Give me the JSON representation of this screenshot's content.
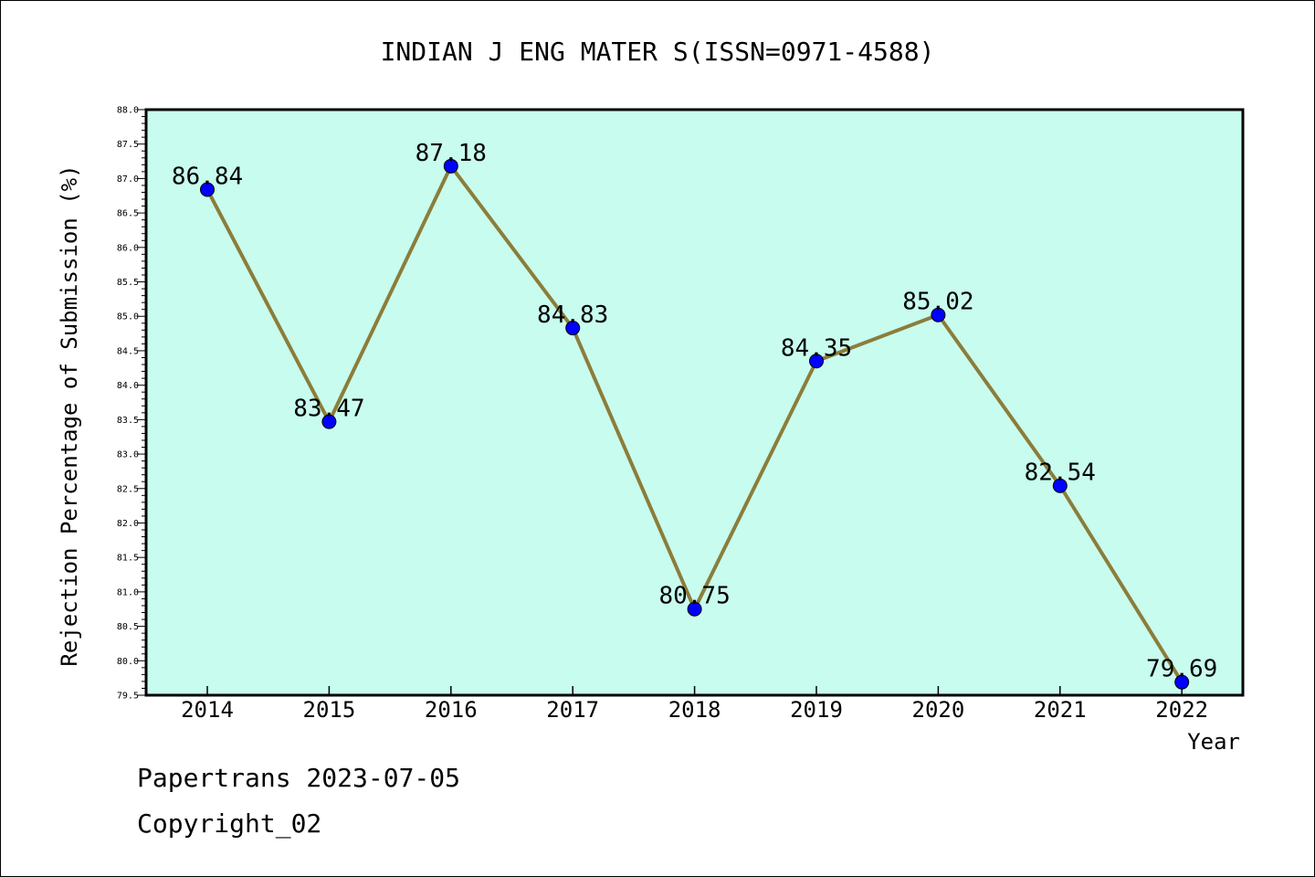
{
  "chart_data": {
    "type": "line",
    "title": "INDIAN J ENG MATER S(ISSN=0971-4588)",
    "xlabel": "Year",
    "ylabel": "Rejection Percentage of Submission (%)",
    "categories": [
      "2014",
      "2015",
      "2016",
      "2017",
      "2018",
      "2019",
      "2020",
      "2021",
      "2022"
    ],
    "values": [
      86.84,
      83.47,
      87.18,
      84.83,
      80.75,
      84.35,
      85.02,
      82.54,
      79.69
    ],
    "value_labels": [
      "86.84",
      "83.47",
      "87.18",
      "84.83",
      "80.75",
      "84.35",
      "85.02",
      "82.54",
      "79.69"
    ],
    "ylim": [
      79.5,
      88.0
    ],
    "yticks": [
      "79.5",
      "80.0",
      "80.5",
      "81.0",
      "81.5",
      "82.0",
      "82.5",
      "83.0",
      "83.5",
      "84.0",
      "84.5",
      "85.0",
      "85.5",
      "86.0",
      "86.5",
      "87.0",
      "87.5",
      "88.0"
    ],
    "grid": false,
    "colors": {
      "plot_background": "#c8fcee",
      "line": "#8b7d3a",
      "marker": "#0000ff"
    }
  },
  "footer": {
    "source": "Papertrans 2023-07-05",
    "copyright": "Copyright_02"
  }
}
